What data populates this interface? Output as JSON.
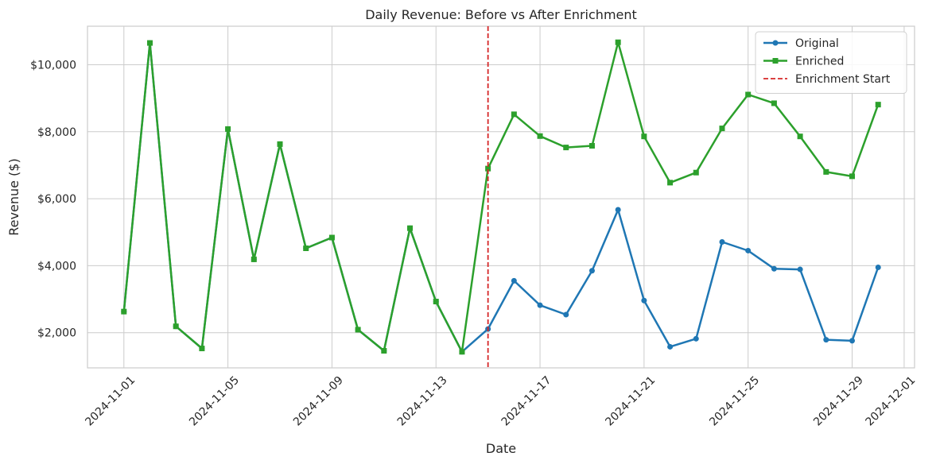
{
  "chart_data": {
    "type": "line",
    "title": "Daily Revenue: Before vs After Enrichment",
    "xlabel": "Date",
    "ylabel": "Revenue ($)",
    "grid": true,
    "legend_position": "top-right",
    "x_dates": [
      "2024-11-01",
      "2024-11-02",
      "2024-11-03",
      "2024-11-04",
      "2024-11-05",
      "2024-11-06",
      "2024-11-07",
      "2024-11-08",
      "2024-11-09",
      "2024-11-10",
      "2024-11-11",
      "2024-11-12",
      "2024-11-13",
      "2024-11-14",
      "2024-11-15",
      "2024-11-16",
      "2024-11-17",
      "2024-11-18",
      "2024-11-19",
      "2024-11-20",
      "2024-11-21",
      "2024-11-22",
      "2024-11-23",
      "2024-11-24",
      "2024-11-25",
      "2024-11-26",
      "2024-11-27",
      "2024-11-28",
      "2024-11-29",
      "2024-11-30"
    ],
    "xlim": [
      "2024-10-30T14:24",
      "2024-12-01T09:36"
    ],
    "x_ticks": [
      "2024-11-01",
      "2024-11-05",
      "2024-11-09",
      "2024-11-13",
      "2024-11-17",
      "2024-11-21",
      "2024-11-25",
      "2024-11-29",
      "2024-12-01"
    ],
    "ylim": [
      950,
      11150
    ],
    "y_ticks": [
      2000,
      4000,
      6000,
      8000,
      10000
    ],
    "y_tick_labels": [
      "$2,000",
      "$4,000",
      "$6,000",
      "$8,000",
      "$10,000"
    ],
    "series": [
      {
        "name": "Original",
        "color": "#1f77b4",
        "marker": "circle",
        "values": [
          2630,
          10650,
          2190,
          1530,
          8080,
          4190,
          7630,
          4520,
          4840,
          2090,
          1460,
          5120,
          2930,
          1430,
          2110,
          3550,
          2820,
          2540,
          3850,
          5670,
          2960,
          1580,
          1820,
          4710,
          4450,
          3910,
          3890,
          1790,
          1760,
          3950
        ]
      },
      {
        "name": "Enriched",
        "color": "#2ca02c",
        "marker": "square",
        "values": [
          2630,
          10650,
          2190,
          1530,
          8080,
          4190,
          7630,
          4520,
          4840,
          2090,
          1460,
          5120,
          2930,
          1430,
          6900,
          8520,
          7870,
          7530,
          7580,
          10670,
          7860,
          6480,
          6780,
          8100,
          9110,
          8850,
          7860,
          6800,
          6670,
          8810
        ]
      }
    ],
    "vline": {
      "name": "Enrichment Start",
      "date": "2024-11-15",
      "color": "#d62728",
      "style": "dashed"
    }
  }
}
